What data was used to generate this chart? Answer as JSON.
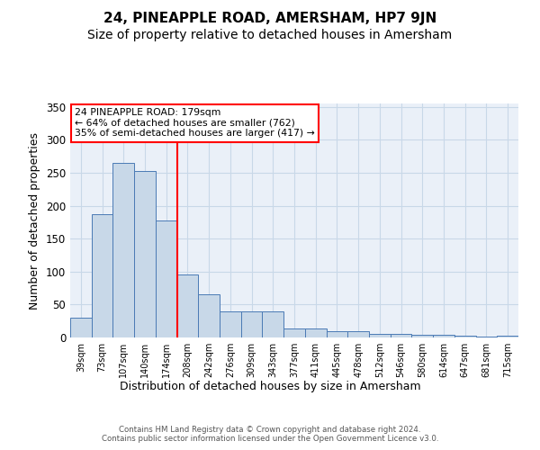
{
  "title": "24, PINEAPPLE ROAD, AMERSHAM, HP7 9JN",
  "subtitle": "Size of property relative to detached houses in Amersham",
  "xlabel": "Distribution of detached houses by size in Amersham",
  "ylabel": "Number of detached properties",
  "bins": [
    "39sqm",
    "73sqm",
    "107sqm",
    "140sqm",
    "174sqm",
    "208sqm",
    "242sqm",
    "276sqm",
    "309sqm",
    "343sqm",
    "377sqm",
    "411sqm",
    "445sqm",
    "478sqm",
    "512sqm",
    "546sqm",
    "580sqm",
    "614sqm",
    "647sqm",
    "681sqm",
    "715sqm"
  ],
  "bar_values": [
    30,
    187,
    265,
    252,
    178,
    95,
    65,
    40,
    40,
    39,
    13,
    13,
    9,
    9,
    6,
    5,
    4,
    4,
    3,
    1,
    3
  ],
  "bar_color": "#c8d8e8",
  "bar_edge_color": "#4a7ab5",
  "annotation_text": "24 PINEAPPLE ROAD: 179sqm\n← 64% of detached houses are smaller (762)\n35% of semi-detached houses are larger (417) →",
  "annotation_box_color": "white",
  "annotation_box_edge_color": "red",
  "redline_color": "red",
  "ylim": [
    0,
    355
  ],
  "yticks": [
    0,
    50,
    100,
    150,
    200,
    250,
    300,
    350
  ],
  "grid_color": "#c8d8e8",
  "bg_color": "#eaf0f8",
  "footer_text": "Contains HM Land Registry data © Crown copyright and database right 2024.\nContains public sector information licensed under the Open Government Licence v3.0.",
  "title_fontsize": 11,
  "subtitle_fontsize": 10,
  "xlabel_fontsize": 9,
  "ylabel_fontsize": 9,
  "redline_bin_index": 4
}
